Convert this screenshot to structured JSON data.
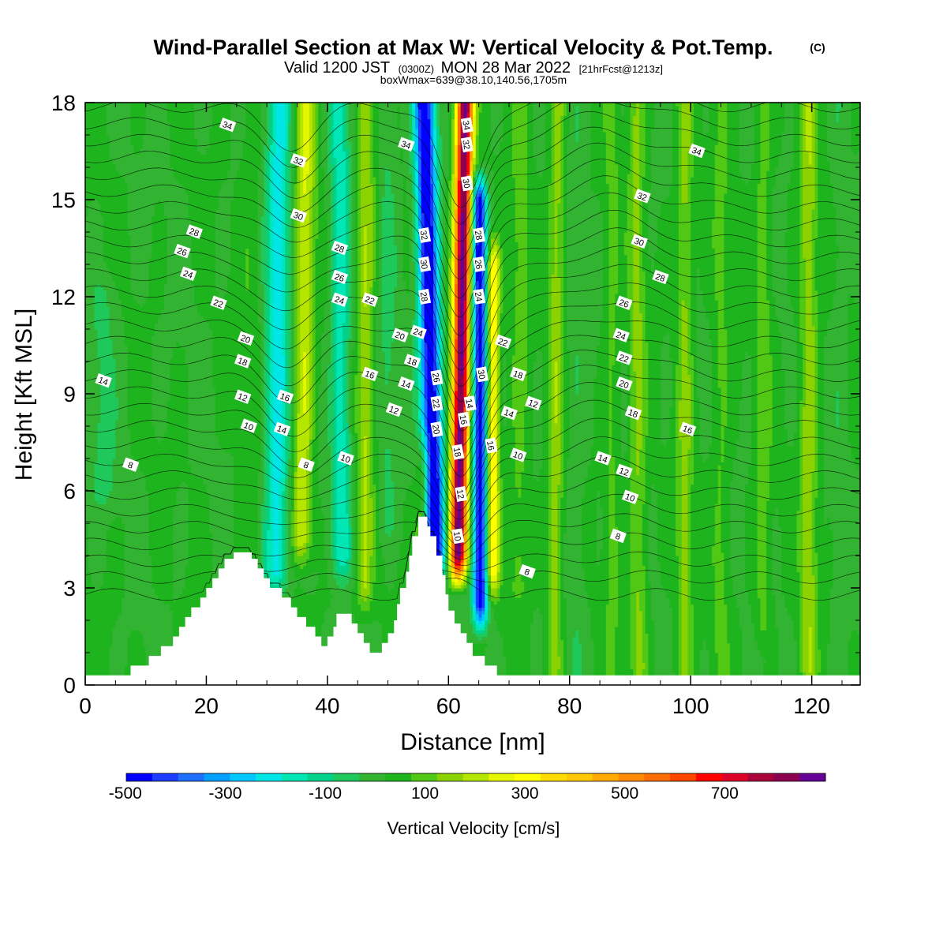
{
  "title": {
    "main": "Wind-Parallel Section at Max W: Vertical Velocity & Pot.Temp.",
    "copyright": "(C)",
    "valid_prefix": "Valid 1200 JST",
    "valid_utc": "(0300Z)",
    "valid_date": "MON 28 Mar 2022",
    "forecast": "[21hrFcst@1213z]",
    "box_info": "boxWmax=639@38.10,140.56,1705m"
  },
  "colors": {
    "terrain": "#ffffff",
    "contour": "#000000",
    "palette": [
      "#0000ff",
      "#1e3cff",
      "#1e6eff",
      "#00a0ff",
      "#00c8ff",
      "#00e6e6",
      "#00e6b4",
      "#00d28c",
      "#1ec85a",
      "#32b432",
      "#1eb41e",
      "#50c814",
      "#8cd200",
      "#b4e600",
      "#e6f500",
      "#ffff00",
      "#ffdc00",
      "#ffc800",
      "#ffaa00",
      "#ff8c00",
      "#ff6e00",
      "#ff4600",
      "#ff0000",
      "#dc0028",
      "#aa003c",
      "#8c0050",
      "#640096"
    ]
  },
  "colorbar": {
    "labels": [
      "-500",
      "-300",
      "-100",
      "100",
      "300",
      "500",
      "700"
    ],
    "title": "Vertical Velocity [cm/s]"
  },
  "chart_data": {
    "type": "heatmap",
    "xlabel": "Distance [nm]",
    "ylabel": "Height [Kft MSL]",
    "xlim": [
      0,
      128
    ],
    "ylim": [
      0,
      18
    ],
    "xticks": [
      0,
      20,
      40,
      60,
      80,
      100,
      120
    ],
    "xtick_labels": [
      "0",
      "20",
      "40",
      "60",
      "80",
      "100",
      "120"
    ],
    "yticks": [
      0,
      3,
      6,
      9,
      12,
      15,
      18
    ],
    "ytick_labels": [
      "0",
      "3",
      "6",
      "9",
      "12",
      "15",
      "18"
    ],
    "colorbar_range": [
      -550,
      850
    ],
    "colorbar_step": 50,
    "terrain_profile": [
      [
        0,
        0.3
      ],
      [
        7.5,
        0.3
      ],
      [
        7.5,
        0.6
      ],
      [
        10.5,
        0.6
      ],
      [
        10.5,
        0.9
      ],
      [
        12.5,
        0.9
      ],
      [
        12.5,
        1.2
      ],
      [
        14.5,
        1.2
      ],
      [
        14.5,
        1.5
      ],
      [
        15.5,
        1.5
      ],
      [
        15.5,
        1.8
      ],
      [
        16.5,
        1.8
      ],
      [
        16.5,
        2.1
      ],
      [
        17.5,
        2.1
      ],
      [
        17.5,
        2.4
      ],
      [
        19,
        2.4
      ],
      [
        19,
        2.7
      ],
      [
        20,
        2.7
      ],
      [
        20,
        3.0
      ],
      [
        21,
        3.0
      ],
      [
        21,
        3.3
      ],
      [
        22,
        3.3
      ],
      [
        22,
        3.6
      ],
      [
        23,
        3.6
      ],
      [
        23,
        3.9
      ],
      [
        24.5,
        3.9
      ],
      [
        24.5,
        4.1
      ],
      [
        27.5,
        4.1
      ],
      [
        27.5,
        3.9
      ],
      [
        28.5,
        3.9
      ],
      [
        28.5,
        3.6
      ],
      [
        29.5,
        3.6
      ],
      [
        29.5,
        3.3
      ],
      [
        30.5,
        3.3
      ],
      [
        30.5,
        3.0
      ],
      [
        32.5,
        3.0
      ],
      [
        32.5,
        2.7
      ],
      [
        34,
        2.7
      ],
      [
        34,
        2.4
      ],
      [
        35,
        2.4
      ],
      [
        35,
        2.1
      ],
      [
        36.5,
        2.1
      ],
      [
        36.5,
        1.8
      ],
      [
        38,
        1.8
      ],
      [
        38,
        1.5
      ],
      [
        39,
        1.5
      ],
      [
        39,
        1.2
      ],
      [
        40,
        1.2
      ],
      [
        40,
        1.5
      ],
      [
        41,
        1.5
      ],
      [
        41,
        1.8
      ],
      [
        41.5,
        1.8
      ],
      [
        41.5,
        2.2
      ],
      [
        44,
        2.2
      ],
      [
        44,
        1.9
      ],
      [
        45,
        1.9
      ],
      [
        45,
        1.6
      ],
      [
        46,
        1.6
      ],
      [
        46,
        1.3
      ],
      [
        47,
        1.3
      ],
      [
        47,
        1.0
      ],
      [
        49,
        1.0
      ],
      [
        49,
        1.3
      ],
      [
        50,
        1.3
      ],
      [
        50,
        1.6
      ],
      [
        51,
        1.6
      ],
      [
        51,
        2.0
      ],
      [
        51.5,
        2.0
      ],
      [
        51.5,
        2.5
      ],
      [
        52,
        2.5
      ],
      [
        52,
        3.0
      ],
      [
        53,
        3.0
      ],
      [
        53,
        3.5
      ],
      [
        53.5,
        3.5
      ],
      [
        53.5,
        4.0
      ],
      [
        54,
        4.0
      ],
      [
        54,
        4.6
      ],
      [
        55,
        4.6
      ],
      [
        55,
        5.2
      ],
      [
        56.5,
        5.2
      ],
      [
        56.5,
        4.9
      ],
      [
        57,
        4.9
      ],
      [
        57,
        4.6
      ],
      [
        58,
        4.6
      ],
      [
        58,
        4.0
      ],
      [
        59,
        4.0
      ],
      [
        59,
        3.4
      ],
      [
        59.5,
        3.4
      ],
      [
        59.5,
        2.8
      ],
      [
        60,
        2.8
      ],
      [
        60,
        2.3
      ],
      [
        61,
        2.3
      ],
      [
        61,
        1.9
      ],
      [
        62,
        1.9
      ],
      [
        62,
        1.6
      ],
      [
        63,
        1.6
      ],
      [
        63,
        1.3
      ],
      [
        64,
        1.3
      ],
      [
        64,
        0.9
      ],
      [
        66,
        0.9
      ],
      [
        66,
        0.6
      ],
      [
        68,
        0.6
      ],
      [
        68,
        0.3
      ],
      [
        128,
        0.3
      ]
    ],
    "w_features": [
      {
        "x": 35.5,
        "x_top": 36.5,
        "z_min": 4.5,
        "z_max": 18,
        "w": 200,
        "width": 1.6
      },
      {
        "x": 31.5,
        "x_top": 32.0,
        "z_min": 3.5,
        "z_max": 18,
        "w": -230,
        "width": 2.0
      },
      {
        "x": 27.0,
        "x_top": 27.5,
        "z_min": 3.5,
        "z_max": 18,
        "w": 40,
        "width": 1.8
      },
      {
        "x": 42.5,
        "x_top": 42.0,
        "z_min": 4.0,
        "z_max": 18,
        "w": -180,
        "width": 1.6
      },
      {
        "x": 46.0,
        "x_top": 46.5,
        "z_min": 3.0,
        "z_max": 18,
        "w": 150,
        "width": 1.4
      },
      {
        "x": 50.0,
        "x_top": 50.0,
        "z_min": 5.0,
        "z_max": 18,
        "w": -60,
        "width": 1.6
      },
      {
        "x": 55.5,
        "x_top": 56.5,
        "z_min": 4.5,
        "z_max": 7.0,
        "w": 160,
        "width": 1.1
      },
      {
        "x": 58.3,
        "x_top": 56.0,
        "z_min": 4.0,
        "z_max": 18,
        "w": -540,
        "width": 1.7
      },
      {
        "x": 61.3,
        "x_top": 62.7,
        "z_min": 4.0,
        "z_max": 18,
        "w": 820,
        "width": 1.4
      },
      {
        "x": 65.3,
        "x_top": 65.0,
        "z_min": 2.5,
        "z_max": 15,
        "w": -500,
        "width": 1.2
      },
      {
        "x": 67.3,
        "x_top": 67.5,
        "z_min": 3.5,
        "z_max": 13,
        "w": 300,
        "width": 1.0
      },
      {
        "x": 71.5,
        "x_top": 72.0,
        "z_min": 3.0,
        "z_max": 18,
        "w": 70,
        "width": 1.6
      },
      {
        "x": 77.5,
        "x_top": 78.0,
        "z_min": 0.5,
        "z_max": 18,
        "w": 130,
        "width": 1.3
      },
      {
        "x": 81.0,
        "x_top": 81.0,
        "z_min": 0.5,
        "z_max": 18,
        "w": -40,
        "width": 1.6
      },
      {
        "x": 87.0,
        "x_top": 87.0,
        "z_min": 0.5,
        "z_max": 18,
        "w": 60,
        "width": 1.3
      },
      {
        "x": 91.5,
        "x_top": 91.0,
        "z_min": 0.5,
        "z_max": 18,
        "w": 110,
        "width": 1.4
      },
      {
        "x": 99.0,
        "x_top": 99.0,
        "z_min": 0.5,
        "z_max": 18,
        "w": 120,
        "width": 1.3
      },
      {
        "x": 105.0,
        "x_top": 105.0,
        "z_min": 0.5,
        "z_max": 18,
        "w": 60,
        "width": 1.5
      },
      {
        "x": 112.0,
        "x_top": 112.0,
        "z_min": 2.0,
        "z_max": 18,
        "w": 80,
        "width": 1.3
      },
      {
        "x": 119.5,
        "x_top": 119.5,
        "z_min": 0.5,
        "z_max": 18,
        "w": 140,
        "width": 1.4
      },
      {
        "x": 124.5,
        "x_top": 124.5,
        "z_min": 0.5,
        "z_max": 18,
        "w": -30,
        "width": 1.2
      },
      {
        "x": 3.0,
        "x_top": 3.0,
        "z_min": 6.0,
        "z_max": 12,
        "w": -60,
        "width": 2.5
      }
    ],
    "contour_labels": [
      {
        "text": "34",
        "x": 23.5,
        "y": 17.3
      },
      {
        "text": "32",
        "x": 35.2,
        "y": 16.2
      },
      {
        "text": "30",
        "x": 35.2,
        "y": 14.5
      },
      {
        "text": "28",
        "x": 18.0,
        "y": 14.0
      },
      {
        "text": "26",
        "x": 16.0,
        "y": 13.4
      },
      {
        "text": "24",
        "x": 17.0,
        "y": 12.7
      },
      {
        "text": "22",
        "x": 22.0,
        "y": 11.8
      },
      {
        "text": "20",
        "x": 26.5,
        "y": 10.7
      },
      {
        "text": "18",
        "x": 26.0,
        "y": 10.0
      },
      {
        "text": "16",
        "x": 33.0,
        "y": 8.9
      },
      {
        "text": "12",
        "x": 26.0,
        "y": 8.9
      },
      {
        "text": "14",
        "x": 32.5,
        "y": 7.9
      },
      {
        "text": "10",
        "x": 27.0,
        "y": 8.0
      },
      {
        "text": "8",
        "x": 7.5,
        "y": 6.8
      },
      {
        "text": "14",
        "x": 3.0,
        "y": 9.4
      },
      {
        "text": "28",
        "x": 42.0,
        "y": 13.5
      },
      {
        "text": "26",
        "x": 42.0,
        "y": 12.6
      },
      {
        "text": "24",
        "x": 42.0,
        "y": 11.9
      },
      {
        "text": "22",
        "x": 47.0,
        "y": 11.9
      },
      {
        "text": "20",
        "x": 52.0,
        "y": 10.8
      },
      {
        "text": "18",
        "x": 54.0,
        "y": 10.0
      },
      {
        "text": "16",
        "x": 47.0,
        "y": 9.6
      },
      {
        "text": "14",
        "x": 53.0,
        "y": 9.3
      },
      {
        "text": "12",
        "x": 51.0,
        "y": 8.5
      },
      {
        "text": "10",
        "x": 43.0,
        "y": 7.0
      },
      {
        "text": "8",
        "x": 36.5,
        "y": 6.8
      },
      {
        "text": "34",
        "x": 53.0,
        "y": 16.7
      },
      {
        "text": "32",
        "x": 56.0,
        "y": 13.9
      },
      {
        "text": "30",
        "x": 56.0,
        "y": 13.0
      },
      {
        "text": "28",
        "x": 56.0,
        "y": 12.0
      },
      {
        "text": "24",
        "x": 55.0,
        "y": 10.9
      },
      {
        "text": "26",
        "x": 58.0,
        "y": 9.5
      },
      {
        "text": "22",
        "x": 58.0,
        "y": 8.7
      },
      {
        "text": "20",
        "x": 58.0,
        "y": 7.9
      },
      {
        "text": "34",
        "x": 63.0,
        "y": 17.3
      },
      {
        "text": "32",
        "x": 63.0,
        "y": 16.7
      },
      {
        "text": "30",
        "x": 63.0,
        "y": 15.5
      },
      {
        "text": "28",
        "x": 65.0,
        "y": 13.9
      },
      {
        "text": "26",
        "x": 65.0,
        "y": 13.0
      },
      {
        "text": "24",
        "x": 65.0,
        "y": 12.0
      },
      {
        "text": "30",
        "x": 65.5,
        "y": 9.6
      },
      {
        "text": "14",
        "x": 63.5,
        "y": 8.7
      },
      {
        "text": "16",
        "x": 62.5,
        "y": 8.2
      },
      {
        "text": "18",
        "x": 61.5,
        "y": 7.2
      },
      {
        "text": "12",
        "x": 62.0,
        "y": 5.9
      },
      {
        "text": "10",
        "x": 61.5,
        "y": 4.6
      },
      {
        "text": "22",
        "x": 69.0,
        "y": 10.6
      },
      {
        "text": "18",
        "x": 71.5,
        "y": 9.6
      },
      {
        "text": "16",
        "x": 67.0,
        "y": 7.4
      },
      {
        "text": "14",
        "x": 70.0,
        "y": 8.4
      },
      {
        "text": "12",
        "x": 74.0,
        "y": 8.7
      },
      {
        "text": "10",
        "x": 71.5,
        "y": 7.1
      },
      {
        "text": "8",
        "x": 73.0,
        "y": 3.5
      },
      {
        "text": "34",
        "x": 101.0,
        "y": 16.5
      },
      {
        "text": "32",
        "x": 92.0,
        "y": 15.1
      },
      {
        "text": "30",
        "x": 91.5,
        "y": 13.7
      },
      {
        "text": "28",
        "x": 95.0,
        "y": 12.6
      },
      {
        "text": "26",
        "x": 89.0,
        "y": 11.8
      },
      {
        "text": "24",
        "x": 88.5,
        "y": 10.8
      },
      {
        "text": "22",
        "x": 89.0,
        "y": 10.1
      },
      {
        "text": "20",
        "x": 89.0,
        "y": 9.3
      },
      {
        "text": "18",
        "x": 90.5,
        "y": 8.4
      },
      {
        "text": "16",
        "x": 99.5,
        "y": 7.9
      },
      {
        "text": "14",
        "x": 85.5,
        "y": 7.0
      },
      {
        "text": "12",
        "x": 89.0,
        "y": 6.6
      },
      {
        "text": "10",
        "x": 90.0,
        "y": 5.8
      },
      {
        "text": "8",
        "x": 88.0,
        "y": 4.6
      }
    ]
  }
}
